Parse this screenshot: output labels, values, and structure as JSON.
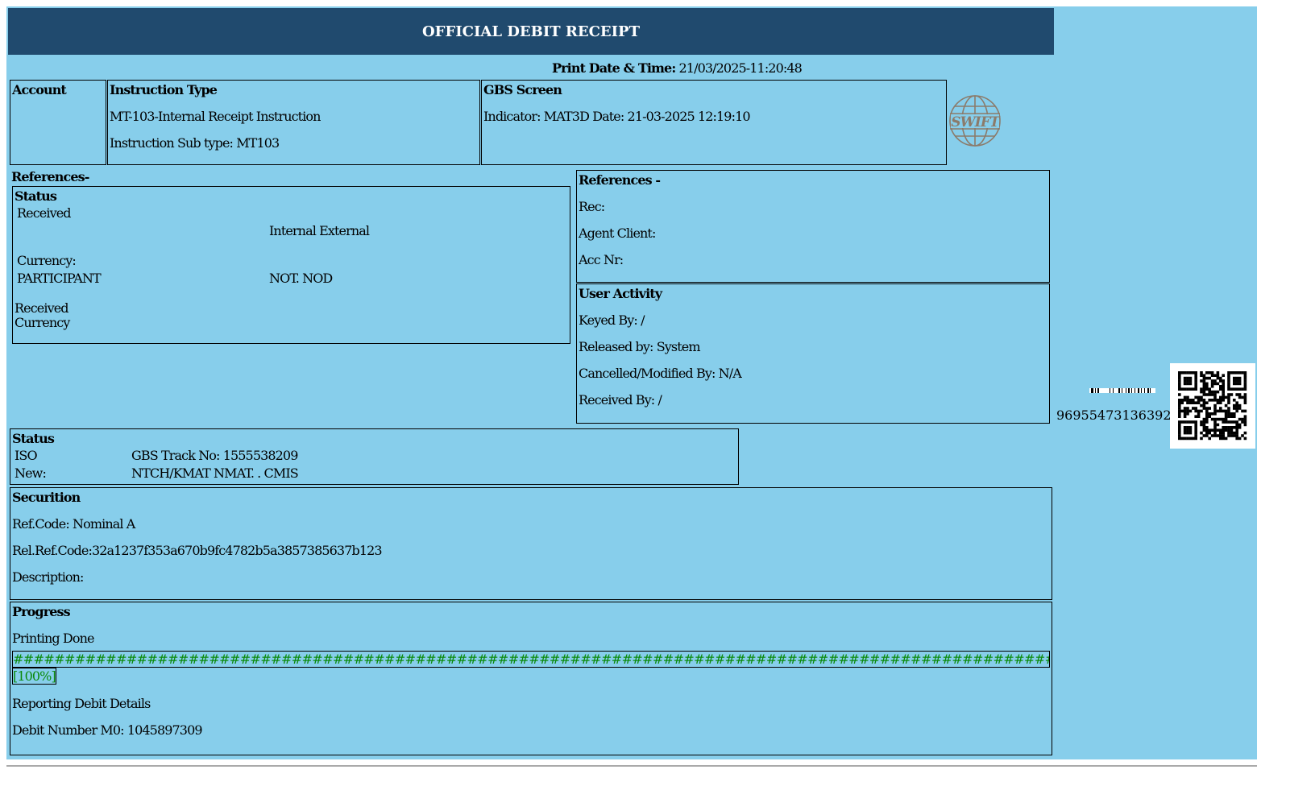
{
  "header": {
    "title": "OFFICIAL DEBIT RECEIPT"
  },
  "print": {
    "label": "Print Date & Time:",
    "value": "21/03/2025-11:20:48"
  },
  "account": {
    "title": "Account"
  },
  "instruction": {
    "title": "Instruction Type",
    "type": "MT-103-Internal Receipt Instruction",
    "subtype": "Instruction Sub type: MT103"
  },
  "gbs": {
    "title": "GBS Screen",
    "indicator": "Indicator: MAT3D Date: 21-03-2025 12:19:10"
  },
  "logo": {
    "text": "SWIFT",
    "color": "#8B7B6B"
  },
  "references_left": {
    "label": "References-",
    "status_title": "Status",
    "received": "Received",
    "internal_external": "Internal External",
    "currency": "Currency:",
    "participant": "PARTICIPANT",
    "not_nod": "NOT. NOD",
    "received2": "Received",
    "currency2": "Currency"
  },
  "references_right": {
    "title": "References -",
    "rec": "Rec:",
    "agent": "Agent Client:",
    "acc": "Acc Nr:"
  },
  "user_activity": {
    "title": "User Activity",
    "keyed": "Keyed By: /",
    "released": "Released by: System",
    "cancelled": "Cancelled/Modified By: N/A",
    "received": "Received By: /"
  },
  "barcode": {
    "number": "96955473136392"
  },
  "status2": {
    "title": "Status",
    "iso": "ISO",
    "track": "GBS Track No: 1555538209",
    "new": "New:",
    "ntch": "NTCH/KMAT NMAT. . CMIS"
  },
  "securition": {
    "title": "Securition",
    "ref": "Ref.Code: Nominal A",
    "relref": "Rel.Ref.Code:32a1237f353a670b9fc4782b5a3857385637b123",
    "desc": "Description:"
  },
  "progress": {
    "title": "Progress",
    "printing": "Printing Done",
    "bar": "##################################################################################################################################",
    "percent_label": "[100%]",
    "percent": 100,
    "reporting": "Reporting Debit Details",
    "debit": "Debit Number M0: 1045897309",
    "color": "#0a8a0a"
  },
  "colors": {
    "background": "#87CEEB",
    "header": "#204A6E"
  }
}
